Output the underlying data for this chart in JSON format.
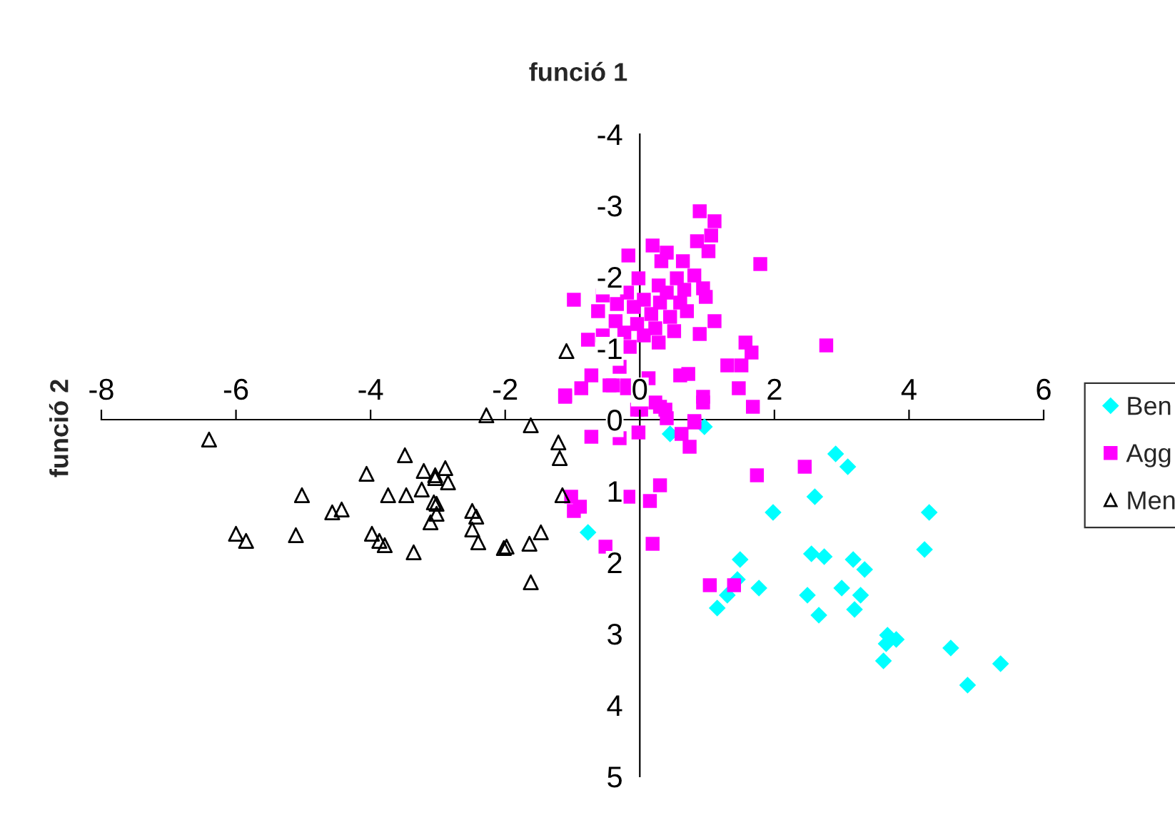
{
  "chart_data": {
    "type": "scatter",
    "xlabel": "funció 1",
    "ylabel": "funció 2",
    "xlim": [
      -8,
      6
    ],
    "xticks": [
      -8,
      -6,
      -4,
      -2,
      0,
      2,
      4,
      6
    ],
    "ylim": [
      5,
      -4
    ],
    "yticks": [
      -4,
      -3,
      -2,
      -1,
      0,
      1,
      2,
      3,
      4,
      5
    ],
    "grid": false,
    "legend": "right",
    "series": [
      {
        "name": "Ben",
        "color": "#00ffff",
        "marker": "diamond",
        "x": [
          -0.77,
          0.45,
          0.96,
          2.91,
          3.09,
          2.6,
          1.98,
          4.3,
          4.23,
          2.55,
          2.74,
          1.49,
          3.17,
          3.34,
          1.45,
          1.77,
          3.0,
          2.49,
          3.28,
          1.3,
          1.15,
          3.19,
          2.66,
          3.68,
          3.66,
          3.81,
          3.62,
          4.62,
          5.36,
          4.87
        ],
        "values": [
          1.58,
          0.2,
          0.1,
          0.48,
          0.66,
          1.08,
          1.3,
          1.3,
          1.82,
          1.88,
          1.92,
          1.96,
          1.96,
          2.1,
          2.24,
          2.36,
          2.36,
          2.46,
          2.46,
          2.46,
          2.64,
          2.66,
          2.74,
          3.02,
          3.14,
          3.08,
          3.38,
          3.2,
          3.42,
          3.72
        ]
      },
      {
        "name": "Agg",
        "color": "#ff00ff",
        "marker": "square",
        "x": [
          -0.72,
          -0.3,
          -0.02,
          0.02,
          0.3,
          0.4,
          0.62,
          0.74,
          0.81,
          0.94,
          1.68,
          1.74,
          2.45,
          0.3,
          -0.17,
          0.15,
          0.19,
          -1.02,
          -0.89,
          -0.98,
          -0.51,
          1.04,
          1.4,
          -1.11,
          -0.72,
          -0.87,
          -0.77,
          -0.19,
          -0.45,
          -0.04,
          0.89,
          1.11,
          1.06,
          0.85,
          1.02,
          1.79,
          0.19,
          0.4,
          -0.17,
          0.64,
          0.32,
          -0.02,
          0.81,
          0.55,
          0.28,
          0.94,
          0.66,
          -0.19,
          0.4,
          0.98,
          -0.98,
          -0.55,
          0.06,
          0.3,
          0.6,
          -0.34,
          -0.09,
          -0.62,
          0.7,
          0.17,
          0.45,
          -0.36,
          -0.04,
          1.11,
          0.23,
          0.51,
          -0.23,
          -0.55,
          0.06,
          0.89,
          0.28,
          -0.15,
          1.57,
          2.77,
          1.66,
          1.3,
          1.51,
          -0.3,
          0.6,
          0.72,
          0.13,
          -1.11,
          -0.4,
          -0.19,
          1.47,
          0.94,
          0.23,
          0.38,
          0.81
        ],
        "values": [
          0.24,
          0.26,
          0.18,
          -0.14,
          -0.18,
          -0.02,
          0.2,
          0.38,
          0.04,
          -0.24,
          -0.18,
          0.78,
          0.66,
          0.92,
          1.08,
          1.14,
          1.74,
          1.08,
          1.22,
          1.28,
          1.78,
          2.32,
          2.32,
          -0.32,
          -0.62,
          -0.44,
          -1.12,
          -0.48,
          -0.48,
          -0.14,
          -2.92,
          -2.78,
          -2.58,
          -2.5,
          -2.36,
          -2.18,
          -2.44,
          -2.34,
          -2.3,
          -2.22,
          -2.22,
          -1.98,
          -2.02,
          -1.98,
          -1.88,
          -1.84,
          -1.82,
          -1.78,
          -1.78,
          -1.72,
          -1.68,
          -1.74,
          -1.68,
          -1.64,
          -1.64,
          -1.62,
          -1.58,
          -1.52,
          -1.52,
          -1.48,
          -1.44,
          -1.38,
          -1.34,
          -1.38,
          -1.28,
          -1.24,
          -1.22,
          -1.18,
          -1.18,
          -1.2,
          -1.08,
          -1.02,
          -1.08,
          -1.04,
          -0.94,
          -0.76,
          -0.76,
          -0.74,
          -0.62,
          -0.64,
          -0.58,
          -0.34,
          -0.48,
          -0.44,
          -0.44,
          -0.32,
          -0.24,
          -0.14,
          0.02
        ]
      },
      {
        "name": "Men",
        "color": "#000000",
        "marker": "triangle",
        "x": [
          -1.09,
          -2.28,
          -6.4,
          -1.62,
          -1.21,
          -1.19,
          -3.49,
          -4.06,
          -3.21,
          -3.04,
          -2.89,
          -2.85,
          -3.04,
          -5.02,
          -3.74,
          -3.47,
          -3.24,
          -3.06,
          -3.02,
          -3.02,
          -3.11,
          -4.57,
          -4.43,
          -2.49,
          -2.43,
          -1.15,
          -6.0,
          -5.85,
          -5.11,
          -3.98,
          -3.87,
          -3.79,
          -3.36,
          -2.49,
          -2.4,
          -2.02,
          -1.98,
          -1.64,
          -1.47,
          -1.62
        ],
        "values": [
          -0.96,
          -0.06,
          0.28,
          0.08,
          0.32,
          0.54,
          0.5,
          0.76,
          0.72,
          0.78,
          0.68,
          0.88,
          0.82,
          1.06,
          1.06,
          1.06,
          0.98,
          1.16,
          1.18,
          1.32,
          1.44,
          1.3,
          1.26,
          1.28,
          1.36,
          1.06,
          1.6,
          1.7,
          1.62,
          1.6,
          1.7,
          1.76,
          1.86,
          1.54,
          1.72,
          1.8,
          1.78,
          1.74,
          1.58,
          2.28
        ]
      }
    ]
  }
}
